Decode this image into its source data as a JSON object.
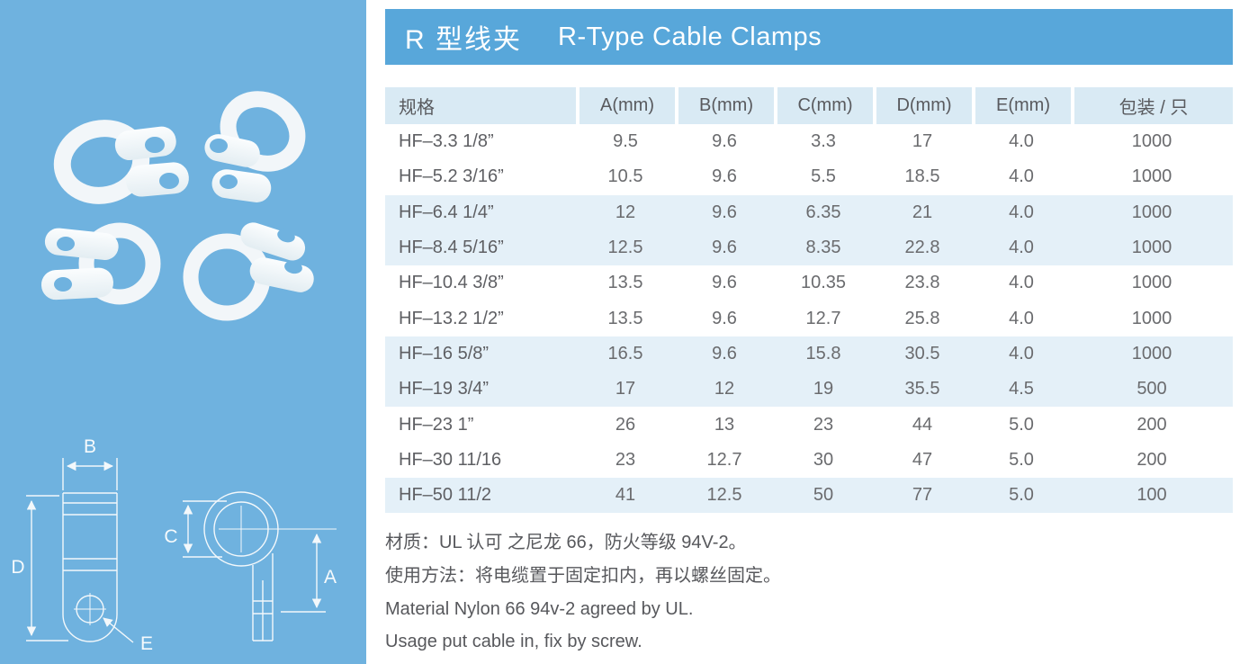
{
  "header": {
    "title_zh": "R 型线夹",
    "title_en": "R-Type Cable Clamps"
  },
  "table": {
    "columns": [
      "规格",
      "A(mm)",
      "B(mm)",
      "C(mm)",
      "D(mm)",
      "E(mm)",
      "包装 / 只"
    ],
    "rows": [
      [
        "HF–3.3 1/8”",
        "9.5",
        "9.6",
        "3.3",
        "17",
        "4.0",
        "1000"
      ],
      [
        "HF–5.2 3/16”",
        "10.5",
        "9.6",
        "5.5",
        "18.5",
        "4.0",
        "1000"
      ],
      [
        "HF–6.4 1/4”",
        "12",
        "9.6",
        "6.35",
        "21",
        "4.0",
        "1000"
      ],
      [
        "HF–8.4 5/16”",
        "12.5",
        "9.6",
        "8.35",
        "22.8",
        "4.0",
        "1000"
      ],
      [
        "HF–10.4 3/8”",
        "13.5",
        "9.6",
        "10.35",
        "23.8",
        "4.0",
        "1000"
      ],
      [
        "HF–13.2 1/2”",
        "13.5",
        "9.6",
        "12.7",
        "25.8",
        "4.0",
        "1000"
      ],
      [
        "HF–16 5/8”",
        "16.5",
        "9.6",
        "15.8",
        "30.5",
        "4.0",
        "1000"
      ],
      [
        "HF–19 3/4”",
        "17",
        "12",
        "19",
        "35.5",
        "4.5",
        "500"
      ],
      [
        "HF–23 1”",
        "26",
        "13",
        "23",
        "44",
        "5.0",
        "200"
      ],
      [
        "HF–30 11/16",
        "23",
        "12.7",
        "30",
        "47",
        "5.0",
        "200"
      ],
      [
        "HF–50 11/2",
        "41",
        "12.5",
        "50",
        "77",
        "5.0",
        "100"
      ]
    ]
  },
  "notes": {
    "material_zh": "材质：UL 认可 之尼龙 66，防火等级 94V-2。",
    "usage_zh": "使用方法：将电缆置于固定扣内，再以螺丝固定。",
    "material_en": "Material Nylon 66 94v-2 agreed by UL.",
    "usage_en": "Usage put cable in, fix by screw."
  },
  "diagram_labels": {
    "a": "A",
    "b": "B",
    "c": "C",
    "d": "D",
    "e": "E"
  },
  "colors": {
    "panel_bg": "#6FB2DF",
    "banner_bg": "#58A7DA",
    "table_header_bg": "#D9EAF4",
    "table_stripe_bg": "#E4F0F8",
    "body_text": "#57585C",
    "title_text": "#FFFFFF"
  }
}
